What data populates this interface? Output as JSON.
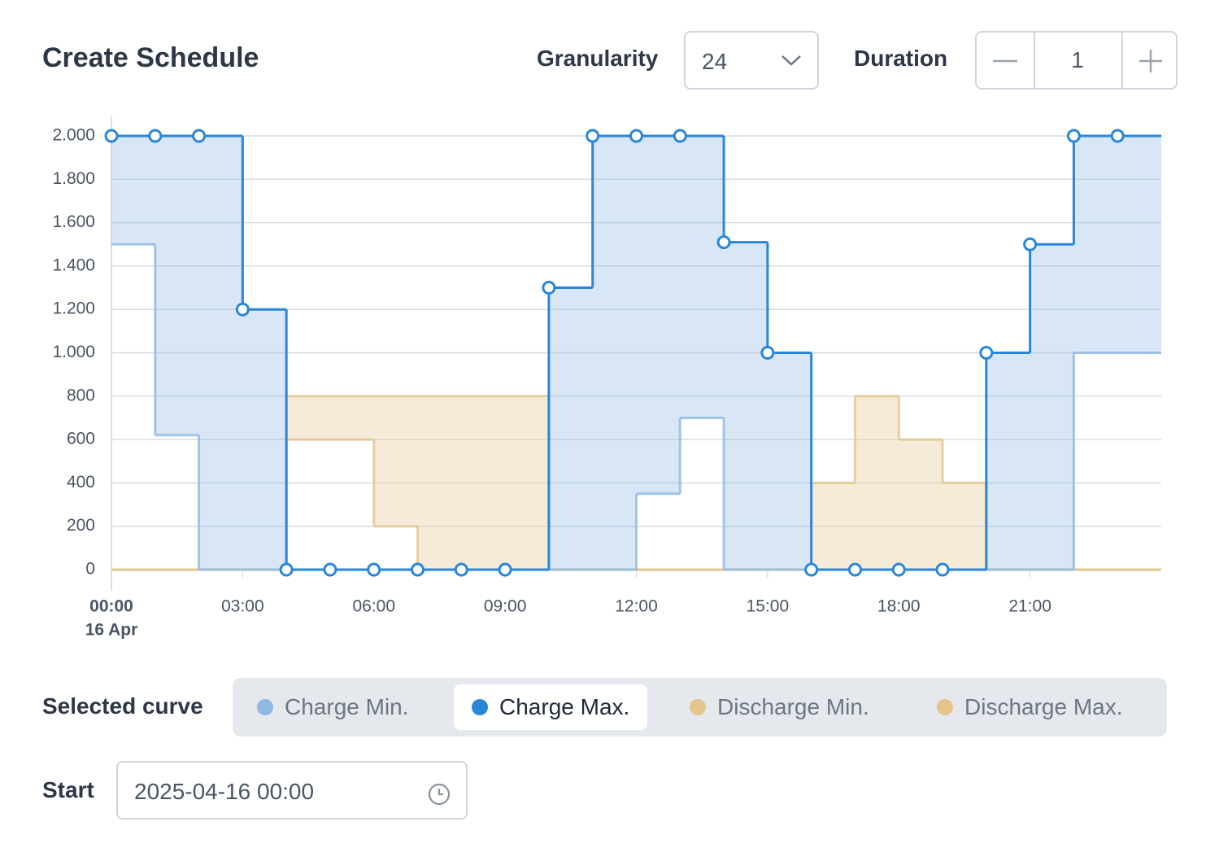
{
  "header": {
    "title": "Create Schedule",
    "granularity_label": "Granularity",
    "granularity_value": "24",
    "duration_label": "Duration",
    "duration_value": "1"
  },
  "curve_selector": {
    "label": "Selected curve",
    "selected_series_index": 1
  },
  "start": {
    "label": "Start",
    "value": "2025-04-16 00:00"
  },
  "chart_data": {
    "type": "step",
    "x": [
      0,
      1,
      2,
      3,
      4,
      5,
      6,
      7,
      8,
      9,
      10,
      11,
      12,
      13,
      14,
      15,
      16,
      17,
      18,
      19,
      20,
      21,
      22,
      23
    ],
    "xlim": [
      0,
      24
    ],
    "xticks": [
      {
        "value": 0,
        "label": "00:00"
      },
      {
        "value": 3,
        "label": "03:00"
      },
      {
        "value": 6,
        "label": "06:00"
      },
      {
        "value": 9,
        "label": "09:00"
      },
      {
        "value": 12,
        "label": "12:00"
      },
      {
        "value": 15,
        "label": "15:00"
      },
      {
        "value": 18,
        "label": "18:00"
      },
      {
        "value": 21,
        "label": "21:00"
      }
    ],
    "x_date_label": "16 Apr",
    "ylim": [
      0,
      2000
    ],
    "yticks": [
      0,
      200,
      400,
      600,
      800,
      {
        "value": 1000,
        "label": "1.000"
      },
      {
        "value": 1200,
        "label": "1.200"
      },
      {
        "value": 1400,
        "label": "1.400"
      },
      {
        "value": 1600,
        "label": "1.600"
      },
      {
        "value": 1800,
        "label": "1.800"
      },
      {
        "value": 2000,
        "label": "2.000"
      }
    ],
    "grid": true,
    "series": [
      {
        "name": "Charge Min.",
        "color": "#8fb8e3",
        "values": [
          1500,
          620,
          0,
          0,
          0,
          0,
          0,
          0,
          0,
          0,
          0,
          0,
          350,
          700,
          0,
          0,
          0,
          0,
          0,
          0,
          0,
          0,
          1000,
          1000
        ]
      },
      {
        "name": "Charge Max.",
        "color": "#2a86d8",
        "values": [
          2000,
          2000,
          2000,
          1200,
          0,
          0,
          0,
          0,
          0,
          0,
          1300,
          2000,
          2000,
          2000,
          1510,
          1000,
          0,
          0,
          0,
          0,
          1000,
          1500,
          2000,
          2000
        ]
      },
      {
        "name": "Discharge Min.",
        "color": "#e5c58e",
        "values": [
          0,
          0,
          0,
          0,
          600,
          600,
          200,
          0,
          0,
          0,
          0,
          0,
          0,
          0,
          0,
          0,
          0,
          0,
          0,
          0,
          0,
          0,
          0,
          0
        ]
      },
      {
        "name": "Discharge Max.",
        "color": "#e5c58e",
        "values": [
          0,
          0,
          0,
          0,
          800,
          800,
          800,
          800,
          800,
          800,
          0,
          0,
          0,
          0,
          0,
          0,
          400,
          800,
          600,
          400,
          0,
          0,
          0,
          0
        ]
      }
    ]
  }
}
